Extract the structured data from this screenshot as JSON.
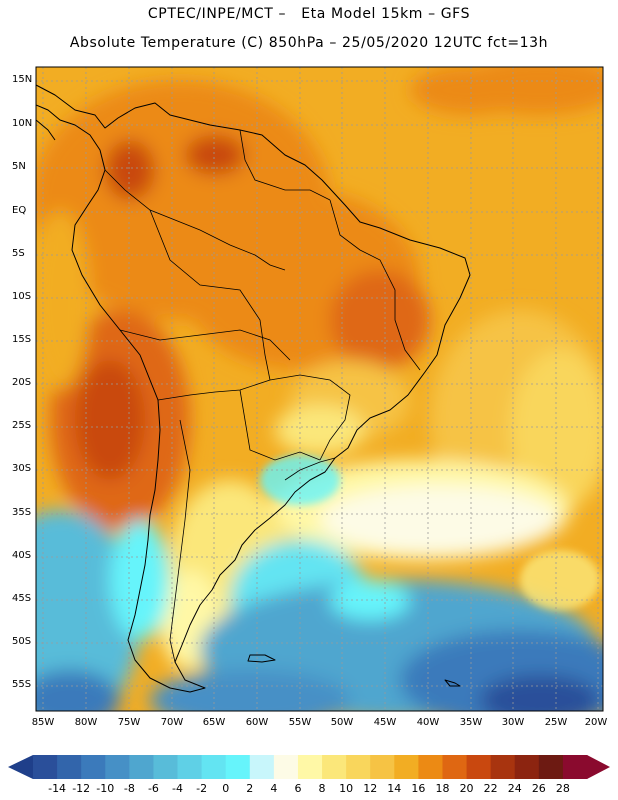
{
  "title_line1": "CPTEC/INPE/MCT –   Eta Model 15km – GFS",
  "title_line2": "Absolute Temperature (C) 850hPa – 25/05/2020 12UTC fct=13h",
  "lat_labels": [
    "15N",
    "10N",
    "5N",
    "EQ",
    "5S",
    "10S",
    "15S",
    "20S",
    "25S",
    "30S",
    "35S",
    "40S",
    "45S",
    "50S",
    "55S"
  ],
  "lon_labels": [
    "85W",
    "80W",
    "75W",
    "70W",
    "65W",
    "60W",
    "55W",
    "50W",
    "45W",
    "40W",
    "35W",
    "30W",
    "25W",
    "20W"
  ],
  "colorbar": {
    "ticks": [
      "-14",
      "-12",
      "-10",
      "-8",
      "-6",
      "-4",
      "-2",
      "0",
      "2",
      "4",
      "6",
      "8",
      "10",
      "12",
      "14",
      "16",
      "18",
      "20",
      "22",
      "24",
      "26",
      "28"
    ],
    "colors": [
      "#2a4f9a",
      "#3265ab",
      "#3b7abb",
      "#4690c6",
      "#4fa6cf",
      "#58bcd9",
      "#5fd0e6",
      "#63e4f2",
      "#66f4fb",
      "#c8f6fb",
      "#fdfbe6",
      "#fff8a6",
      "#fbe77a",
      "#f9d65c",
      "#f6c344",
      "#f2ad23",
      "#ec8a14",
      "#df6712",
      "#c9480f",
      "#a8340f",
      "#8c2410",
      "#6d1a12",
      "#8a0a2e"
    ]
  }
}
